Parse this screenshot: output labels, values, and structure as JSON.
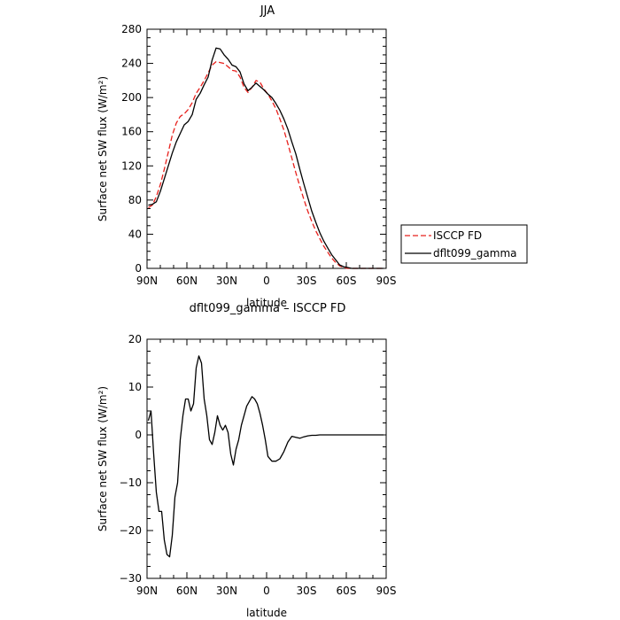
{
  "chart_data": [
    {
      "type": "line",
      "title": "JJA",
      "xlabel": "latitude",
      "ylabel": "Surface net SW flux (W/m²)",
      "xlim": [
        90,
        -90
      ],
      "ylim": [
        0,
        280
      ],
      "xticks": [
        90,
        60,
        30,
        0,
        -30,
        -60,
        -90
      ],
      "xtick_labels": [
        "90N",
        "60N",
        "30N",
        "0",
        "30S",
        "60S",
        "90S"
      ],
      "yticks": [
        0,
        40,
        80,
        120,
        160,
        200,
        240,
        280
      ],
      "ytick_labels": [
        "0",
        "40",
        "80",
        "120",
        "160",
        "200",
        "240",
        "280"
      ],
      "legend": "right",
      "series": [
        {
          "name": "ISCCP FD",
          "color": "#e8201c",
          "dash": "dashed",
          "x": [
            89,
            86,
            83,
            80,
            77,
            74,
            71,
            68,
            65,
            62,
            59,
            56,
            53,
            50,
            47,
            44,
            41,
            38,
            35,
            32,
            29,
            26,
            23,
            20,
            17,
            14,
            11,
            8,
            5,
            2,
            -1,
            -4,
            -7,
            -10,
            -13,
            -16,
            -19,
            -22,
            -25,
            -28,
            -31,
            -34,
            -37,
            -40,
            -43,
            -46,
            -49,
            -52,
            -55,
            -58,
            -61,
            -64,
            -67,
            -70,
            -73,
            -76,
            -79,
            -82,
            -85,
            -88
          ],
          "y": [
            71,
            74,
            84,
            98,
            116,
            136,
            156,
            170,
            178,
            181,
            186,
            194,
            205,
            212,
            220,
            229,
            238,
            242,
            241,
            240,
            236,
            232,
            231,
            224,
            212,
            206,
            212,
            220,
            218,
            210,
            204,
            196,
            187,
            175,
            162,
            146,
            129,
            112,
            96,
            81,
            67,
            55,
            44,
            35,
            26,
            19,
            12,
            7,
            3,
            1,
            0,
            0,
            0,
            0,
            0,
            0,
            0,
            0,
            0,
            0
          ]
        },
        {
          "name": "dflt099_gamma",
          "color": "#000000",
          "dash": "solid",
          "x": [
            89,
            86,
            83,
            80,
            77,
            74,
            71,
            68,
            65,
            62,
            59,
            56,
            53,
            50,
            47,
            44,
            41,
            38,
            35,
            32,
            29,
            26,
            23,
            20,
            17,
            14,
            11,
            8,
            5,
            2,
            -1,
            -4,
            -7,
            -10,
            -13,
            -16,
            -19,
            -22,
            -25,
            -28,
            -31,
            -34,
            -37,
            -40,
            -43,
            -46,
            -49,
            -52,
            -55,
            -58,
            -61,
            -64,
            -67,
            -70,
            -73,
            -76,
            -79,
            -82,
            -85,
            -88
          ],
          "y": [
            74,
            75,
            78,
            90,
            105,
            120,
            135,
            148,
            158,
            168,
            172,
            180,
            198,
            205,
            215,
            224,
            244,
            258,
            257,
            250,
            245,
            238,
            236,
            230,
            216,
            208,
            212,
            217,
            213,
            209,
            204,
            200,
            193,
            185,
            175,
            163,
            148,
            134,
            116,
            99,
            83,
            67,
            54,
            42,
            32,
            24,
            16,
            10,
            4,
            2,
            1,
            0,
            0,
            0,
            0,
            0,
            0,
            0,
            0,
            0
          ]
        }
      ]
    },
    {
      "type": "line",
      "title": "dflt099_gamma – ISCCP FD",
      "xlabel": "latitude",
      "ylabel": "Surface net SW flux (W/m²)",
      "xlim": [
        90,
        -90
      ],
      "ylim": [
        -30,
        20
      ],
      "xticks": [
        90,
        60,
        30,
        0,
        -30,
        -60,
        -90
      ],
      "xtick_labels": [
        "90N",
        "60N",
        "30N",
        "0",
        "30S",
        "60S",
        "90S"
      ],
      "yticks": [
        -30,
        -20,
        -10,
        0,
        10,
        20
      ],
      "ytick_labels": [
        "−30",
        "−20",
        "−10",
        "0",
        "10",
        "20"
      ],
      "series": [
        {
          "color": "#000000",
          "dash": "solid",
          "x": [
            89,
            87,
            85,
            83,
            81,
            79,
            77,
            75,
            73,
            71,
            69,
            67,
            65,
            63,
            61,
            59,
            57,
            55,
            53,
            51,
            49,
            47,
            45,
            43,
            41,
            39,
            37,
            35,
            33,
            31,
            29,
            27,
            25,
            23,
            21,
            19,
            17,
            15,
            13,
            11,
            9,
            7,
            5,
            3,
            1,
            -1,
            -4,
            -7,
            -10,
            -13,
            -16,
            -19,
            -22,
            -25,
            -28,
            -31,
            -34,
            -37,
            -40,
            -43,
            -46,
            -49,
            -52,
            -55,
            -58,
            -61,
            -64,
            -67,
            -70,
            -73,
            -76,
            -79,
            -82,
            -85,
            -88
          ],
          "y": [
            3,
            5,
            -4,
            -12,
            -16,
            -16,
            -22,
            -25,
            -25.5,
            -21,
            -13,
            -10,
            -1,
            4,
            7.5,
            7.5,
            5,
            6.5,
            14,
            16.5,
            15,
            7.5,
            4,
            -1,
            -2,
            0.5,
            4,
            2,
            1,
            2,
            0.5,
            -4,
            -6.3,
            -3,
            -1,
            2,
            4,
            6,
            7,
            8,
            7.5,
            6.5,
            4.5,
            2,
            -1,
            -4.5,
            -5.5,
            -5.5,
            -5,
            -3.5,
            -1.5,
            -0.3,
            -0.5,
            -0.7,
            -0.4,
            -0.2,
            -0.1,
            -0.1,
            0,
            0,
            0,
            0,
            0,
            0,
            0,
            0,
            0,
            0,
            0,
            0,
            0,
            0,
            0,
            0,
            0
          ]
        }
      ]
    }
  ]
}
